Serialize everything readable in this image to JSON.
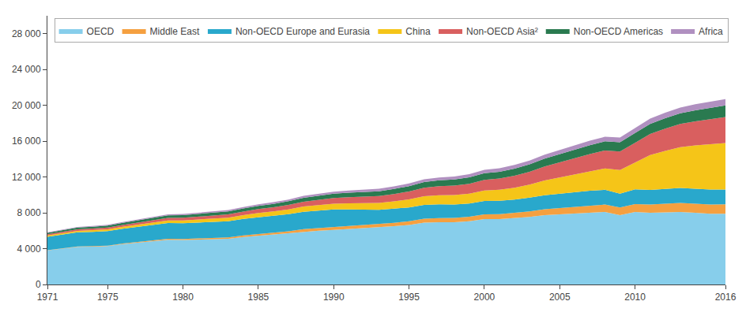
{
  "chart_data": {
    "type": "area",
    "stacked": true,
    "x": [
      1971,
      1972,
      1973,
      1974,
      1975,
      1976,
      1977,
      1978,
      1979,
      1980,
      1981,
      1982,
      1983,
      1984,
      1985,
      1986,
      1987,
      1988,
      1989,
      1990,
      1991,
      1992,
      1993,
      1994,
      1995,
      1996,
      1997,
      1998,
      1999,
      2000,
      2001,
      2002,
      2003,
      2004,
      2005,
      2006,
      2007,
      2008,
      2009,
      2010,
      2011,
      2012,
      2013,
      2014,
      2015,
      2016
    ],
    "series": [
      {
        "name": "OECD",
        "color": "#87CEEB",
        "values": [
          3800,
          3980,
          4200,
          4230,
          4280,
          4500,
          4680,
          4850,
          5000,
          4960,
          5000,
          5020,
          5100,
          5300,
          5450,
          5550,
          5700,
          5900,
          6000,
          6100,
          6200,
          6300,
          6350,
          6500,
          6650,
          6900,
          6950,
          6950,
          7050,
          7300,
          7300,
          7400,
          7550,
          7750,
          7850,
          7950,
          8050,
          8100,
          7750,
          8100,
          8000,
          8050,
          8100,
          8000,
          7900,
          7900
        ]
      },
      {
        "name": "Middle East",
        "color": "#F5A040",
        "values": [
          30,
          35,
          40,
          50,
          60,
          70,
          80,
          95,
          110,
          120,
          135,
          150,
          165,
          185,
          200,
          220,
          245,
          270,
          290,
          310,
          335,
          355,
          370,
          390,
          415,
          440,
          465,
          490,
          510,
          530,
          560,
          590,
          620,
          660,
          700,
          740,
          780,
          820,
          840,
          880,
          920,
          960,
          1000,
          1020,
          1040,
          1060
        ]
      },
      {
        "name": "Non-OECD Europe and Eurasia",
        "color": "#29A8CC",
        "values": [
          1500,
          1540,
          1580,
          1600,
          1620,
          1650,
          1680,
          1710,
          1750,
          1760,
          1780,
          1790,
          1800,
          1830,
          1860,
          1880,
          1900,
          1940,
          1960,
          1960,
          1850,
          1720,
          1620,
          1570,
          1540,
          1550,
          1530,
          1490,
          1480,
          1490,
          1480,
          1490,
          1520,
          1560,
          1590,
          1630,
          1650,
          1650,
          1560,
          1640,
          1640,
          1660,
          1680,
          1680,
          1660,
          1640
        ]
      },
      {
        "name": "China",
        "color": "#F5C518",
        "values": [
          140,
          155,
          170,
          185,
          200,
          220,
          245,
          270,
          295,
          310,
          340,
          365,
          390,
          430,
          475,
          500,
          540,
          590,
          620,
          650,
          680,
          720,
          760,
          820,
          900,
          970,
          1020,
          1060,
          1100,
          1180,
          1240,
          1330,
          1470,
          1650,
          1820,
          2000,
          2180,
          2380,
          2630,
          3000,
          3890,
          4240,
          4540,
          4820,
          5050,
          5200
        ]
      },
      {
        "name": "Non-OECD Asia²",
        "color": "#D95F5F",
        "values": [
          130,
          145,
          160,
          175,
          190,
          210,
          230,
          255,
          280,
          300,
          320,
          340,
          370,
          400,
          430,
          465,
          500,
          545,
          590,
          630,
          675,
          720,
          770,
          820,
          880,
          940,
          1000,
          1050,
          1110,
          1180,
          1250,
          1340,
          1430,
          1560,
          1680,
          1790,
          1900,
          2010,
          2060,
          2200,
          2350,
          2480,
          2600,
          2700,
          2800,
          2900
        ]
      },
      {
        "name": "Non-OECD Americas",
        "color": "#2A7A50",
        "values": [
          170,
          185,
          200,
          215,
          225,
          240,
          255,
          270,
          285,
          300,
          310,
          320,
          330,
          350,
          370,
          390,
          410,
          435,
          460,
          480,
          500,
          520,
          540,
          570,
          600,
          630,
          660,
          680,
          710,
          740,
          760,
          790,
          820,
          870,
          910,
          950,
          990,
          1020,
          1040,
          1090,
          1130,
          1170,
          1200,
          1230,
          1270,
          1290
        ]
      },
      {
        "name": "Africa",
        "color": "#B090C0",
        "values": [
          60,
          65,
          70,
          75,
          80,
          88,
          95,
          103,
          112,
          120,
          130,
          140,
          148,
          158,
          170,
          182,
          195,
          208,
          222,
          236,
          248,
          260,
          272,
          284,
          298,
          312,
          326,
          340,
          355,
          370,
          385,
          400,
          415,
          435,
          455,
          475,
          495,
          515,
          530,
          560,
          590,
          615,
          640,
          665,
          685,
          700
        ]
      }
    ],
    "xlim": [
      1971,
      2016
    ],
    "xticks": [
      1971,
      1975,
      1980,
      1985,
      1990,
      1995,
      2000,
      2005,
      2010,
      2016
    ],
    "ylim": [
      0,
      30000
    ],
    "yticks": [
      0,
      {
        "value": 4000,
        "label": "4 000"
      },
      {
        "value": 8000,
        "label": "8 000"
      },
      {
        "value": 12000,
        "label": "12 000"
      },
      {
        "value": 16000,
        "label": "16 000"
      },
      {
        "value": 20000,
        "label": "20 000"
      },
      {
        "value": 24000,
        "label": "24 000"
      },
      {
        "value": 28000,
        "label": "28 000"
      }
    ],
    "grid": false,
    "legend": "upper left"
  }
}
